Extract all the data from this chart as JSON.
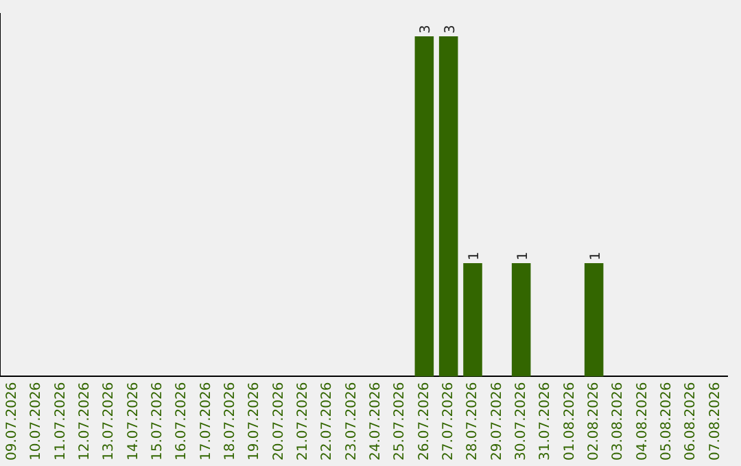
{
  "chart_data": {
    "type": "bar",
    "categories": [
      "09.07.2026",
      "10.07.2026",
      "11.07.2026",
      "12.07.2026",
      "13.07.2026",
      "14.07.2026",
      "15.07.2026",
      "16.07.2026",
      "17.07.2026",
      "18.07.2026",
      "19.07.2026",
      "20.07.2026",
      "21.07.2026",
      "22.07.2026",
      "23.07.2026",
      "24.07.2026",
      "25.07.2026",
      "26.07.2026",
      "27.07.2026",
      "28.07.2026",
      "29.07.2026",
      "30.07.2026",
      "31.07.2026",
      "01.08.2026",
      "02.08.2026",
      "03.08.2026",
      "04.08.2026",
      "05.08.2026",
      "06.08.2026",
      "07.08.2026"
    ],
    "values": [
      null,
      null,
      null,
      null,
      null,
      null,
      null,
      null,
      null,
      null,
      null,
      null,
      null,
      null,
      null,
      null,
      null,
      3,
      3,
      1,
      null,
      1,
      null,
      null,
      1,
      null,
      null,
      null,
      null,
      null
    ],
    "data_labels": true,
    "color": "#336600",
    "ylim": [
      0,
      3.2
    ],
    "tick_labels": "x",
    "grid": false,
    "legend": false
  }
}
